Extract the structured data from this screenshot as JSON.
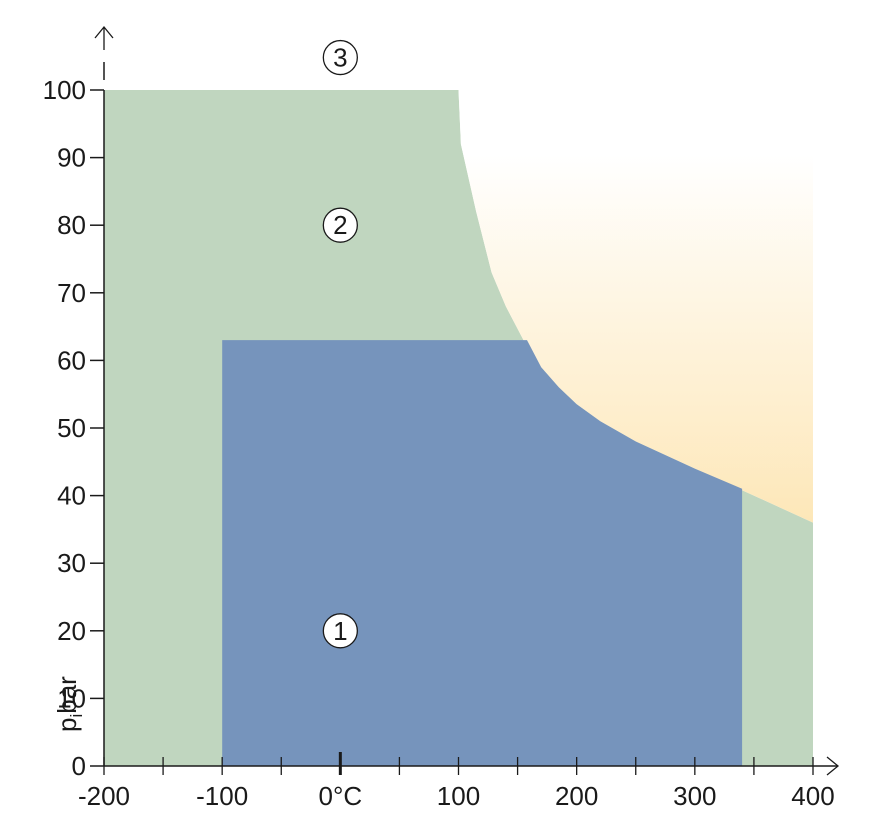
{
  "chart_data": {
    "type": "area",
    "title": "",
    "xlabel": "",
    "ylabel_main": "p",
    "ylabel_subscript": "i",
    "ylabel_unit": "bar",
    "xlim": [
      -200,
      400
    ],
    "ylim": [
      0,
      100
    ],
    "x_ticks": [
      -200,
      -100,
      0,
      100,
      200,
      300,
      400
    ],
    "x_tick_labels": [
      "-200",
      "-100",
      "0°C",
      "100",
      "200",
      "300",
      "400"
    ],
    "x_minor_ticks": [
      -150,
      -50,
      50,
      150,
      250,
      350
    ],
    "y_ticks": [
      0,
      10,
      20,
      30,
      40,
      50,
      60,
      70,
      80,
      90,
      100
    ],
    "y_tick_labels": [
      "0",
      "10",
      "20",
      "30",
      "40",
      "50",
      "60",
      "70",
      "80",
      "90",
      "100"
    ],
    "regions": [
      {
        "id": "region-2",
        "color": "#c0d6bf",
        "polygon": [
          [
            -200,
            0
          ],
          [
            -200,
            100
          ],
          [
            100,
            100
          ],
          [
            102,
            92
          ],
          [
            115,
            82
          ],
          [
            128,
            73
          ],
          [
            140,
            68
          ],
          [
            155,
            63
          ],
          [
            170,
            59
          ],
          [
            185,
            56
          ],
          [
            200,
            53.5
          ],
          [
            220,
            51
          ],
          [
            250,
            48
          ],
          [
            300,
            44
          ],
          [
            350,
            40
          ],
          [
            400,
            36
          ],
          [
            400,
            0
          ]
        ]
      },
      {
        "id": "region-1",
        "color": "#7694bc",
        "polygon": [
          [
            -100,
            0
          ],
          [
            -100,
            63
          ],
          [
            158,
            63
          ],
          [
            170,
            59
          ],
          [
            185,
            56
          ],
          [
            200,
            53.5
          ],
          [
            220,
            51
          ],
          [
            250,
            48
          ],
          [
            300,
            44
          ],
          [
            340,
            41
          ],
          [
            340,
            0
          ]
        ]
      },
      {
        "id": "region-3",
        "color_top": "#ffffff",
        "color_bottom": "#fde7b8",
        "polygon": [
          [
            100,
            100
          ],
          [
            400,
            100
          ],
          [
            400,
            36
          ],
          [
            350,
            40
          ],
          [
            300,
            44
          ],
          [
            250,
            48
          ],
          [
            220,
            51
          ],
          [
            200,
            53.5
          ],
          [
            185,
            56
          ],
          [
            170,
            59
          ],
          [
            155,
            63
          ],
          [
            140,
            68
          ],
          [
            128,
            73
          ],
          [
            115,
            82
          ],
          [
            102,
            92
          ]
        ]
      }
    ],
    "markers": [
      {
        "label": "3",
        "x": 0,
        "y": 104.8
      },
      {
        "label": "2",
        "x": 0,
        "y": 80
      },
      {
        "label": "1",
        "x": 0,
        "y": 20
      }
    ]
  }
}
